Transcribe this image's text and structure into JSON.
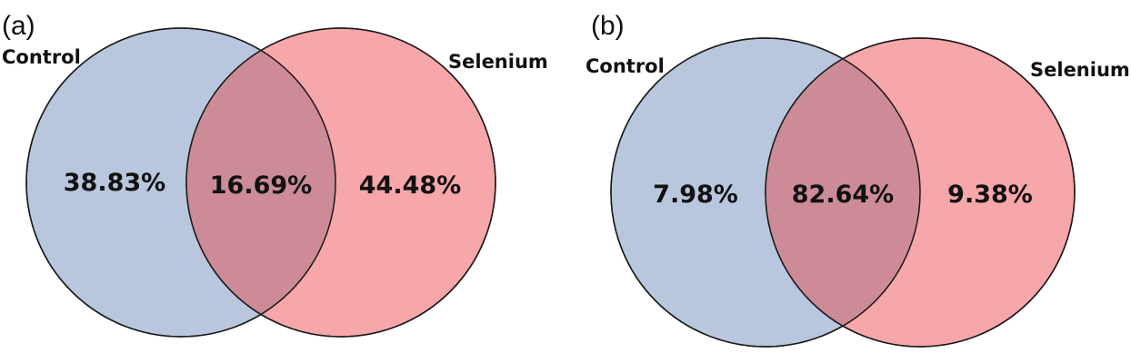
{
  "colors": {
    "left_set": "#b8c7dd",
    "right_set": "#f7a6aa",
    "overlap": "#cd8b98",
    "outline": "#1a1a1a"
  },
  "panels": [
    {
      "panel_label": "(a)",
      "left_set": {
        "name": "Control",
        "share": "38.83%"
      },
      "overlap": {
        "share": "16.69%"
      },
      "right_set": {
        "name": "Selenium",
        "share": "44.48%"
      }
    },
    {
      "panel_label": "(b)",
      "left_set": {
        "name": "Control",
        "share": "7.98%"
      },
      "overlap": {
        "share": "82.64%"
      },
      "right_set": {
        "name": "Selenium",
        "share": "9.38%"
      }
    }
  ]
}
